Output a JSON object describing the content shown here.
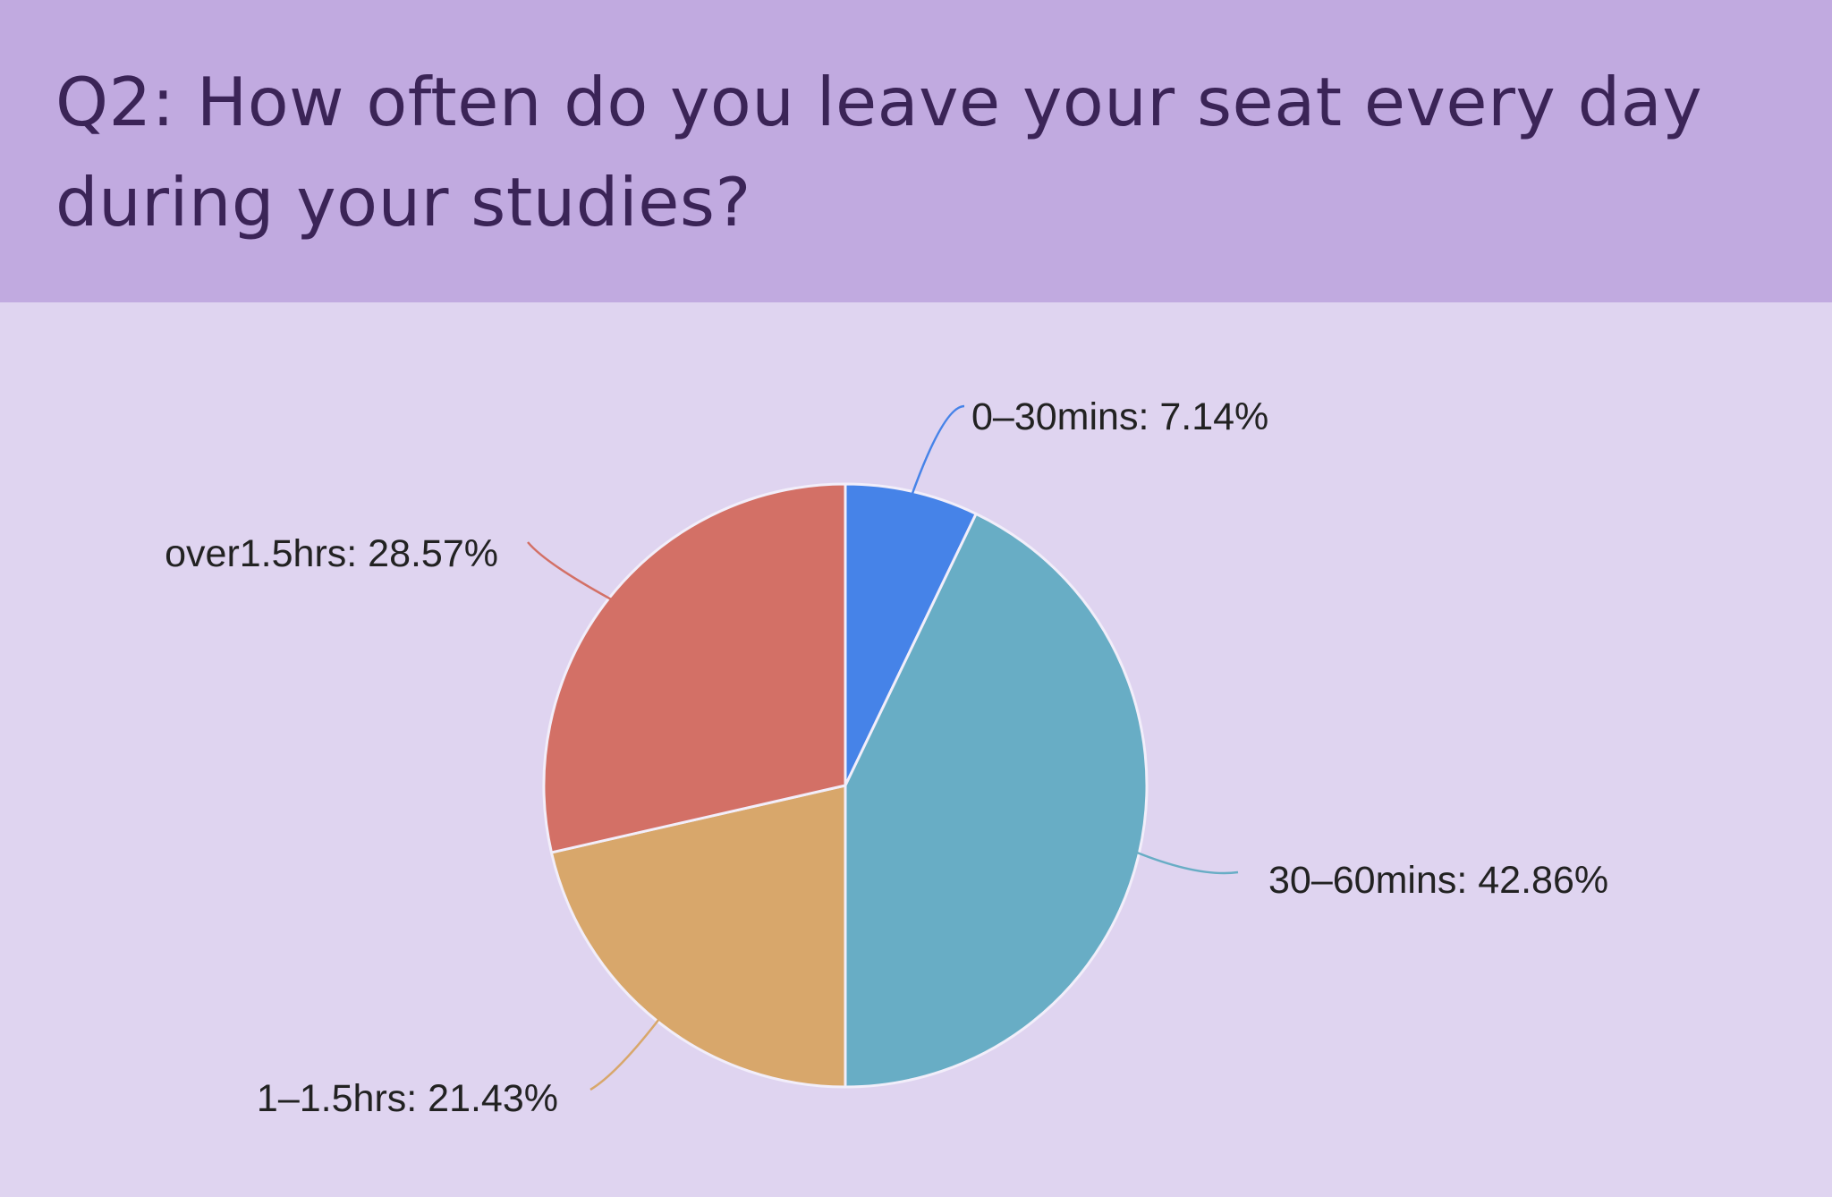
{
  "page": {
    "title": "Q2: How often do you leave your seat every day during your studies?"
  },
  "chart_data": {
    "type": "pie",
    "slices": [
      {
        "label": "0–30mins",
        "value": 7.14,
        "display": "0–30mins: 7.14%",
        "color": "#4683e8"
      },
      {
        "label": "30–60mins",
        "value": 42.86,
        "display": "30–60mins: 42.86%",
        "color": "#68adc5"
      },
      {
        "label": "1–1.5hrs",
        "value": 21.43,
        "display": "1–1.5hrs: 21.43%",
        "color": "#d8a76b"
      },
      {
        "label": "over1.5hrs",
        "value": 28.57,
        "display": "over1.5hrs: 28.57%",
        "color": "#d37066"
      }
    ],
    "start_angle": "12 o'clock",
    "direction": "clockwise",
    "slice_border_color": "#f2eefa",
    "label_color": "#222222",
    "header_color": "#c1aae0",
    "background_color": "#dfd4f0",
    "title_color": "#3b2457"
  }
}
